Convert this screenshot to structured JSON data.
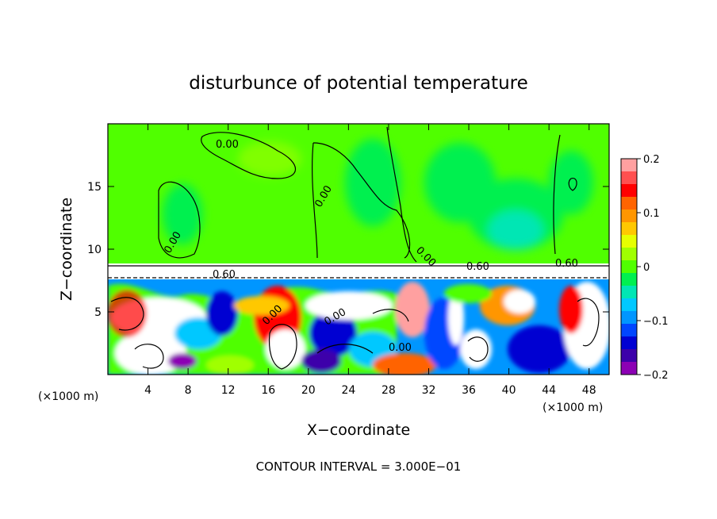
{
  "chart_data": {
    "type": "heatmap",
    "title": "disturbunce of potential temperature",
    "xlabel": "X−coordinate",
    "ylabel": "Z−coordinate",
    "x_unit_left": "(×1000 m)",
    "x_unit_right": "(×1000 m)",
    "xlim": [
      0,
      50
    ],
    "ylim": [
      0,
      20
    ],
    "x_ticks": [
      4,
      8,
      12,
      16,
      20,
      24,
      28,
      32,
      36,
      40,
      44,
      48
    ],
    "x_tick_labels": [
      "4",
      "8",
      "12",
      "16",
      "20",
      "24",
      "28",
      "32",
      "36",
      "40",
      "44",
      "48"
    ],
    "y_ticks": [
      5,
      10,
      15
    ],
    "y_tick_labels": [
      "5",
      "10",
      "15"
    ],
    "colorbar": {
      "range": [
        -0.2,
        0.2
      ],
      "ticks": [
        0.2,
        0.1,
        0,
        -0.1,
        -0.2
      ],
      "tick_labels": [
        "0.2",
        "0.1",
        "0",
        "−0.1",
        "−0.2"
      ],
      "colors": [
        "#ffa0a0",
        "#ff5050",
        "#ff0000",
        "#ff6400",
        "#ff9600",
        "#ffc800",
        "#e6ff00",
        "#a0ff00",
        "#50ff00",
        "#00f050",
        "#00e6b4",
        "#00c8ff",
        "#0096ff",
        "#0046ff",
        "#0000d2",
        "#3c00aa",
        "#8c00b4"
      ]
    },
    "contour_labels": [
      "0.00",
      "0.00",
      "0.00",
      "0.00",
      "0.00",
      "0.60",
      "0.00",
      "0.00",
      "0.60",
      "0.60"
    ],
    "footer": "CONTOUR INTERVAL = 3.000E−01"
  }
}
